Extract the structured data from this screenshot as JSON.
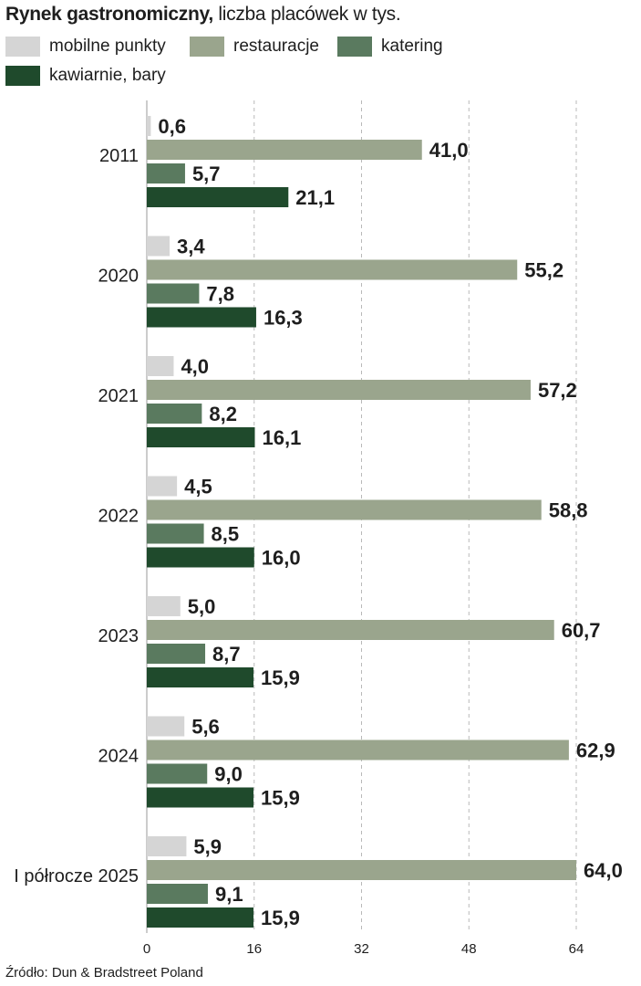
{
  "title_bold": "Rynek gastronomiczny,",
  "title_rest": " liczba placówek w tys.",
  "source": "Źródło: Dun & Bradstreet Poland",
  "colors": {
    "mobilne": "#d5d5d5",
    "restauracje": "#9aa58d",
    "katering": "#5a7a5f",
    "kawiarnie": "#1f4a2c",
    "grid": "#b9b9b9",
    "text": "#1e1e1e"
  },
  "legend": [
    {
      "label": "mobilne punkty",
      "color": "#d5d5d5"
    },
    {
      "label": "restauracje",
      "color": "#9aa58d"
    },
    {
      "label": "katering",
      "color": "#5a7a5f"
    },
    {
      "label": "kawiarnie, bary",
      "color": "#1f4a2c"
    }
  ],
  "chart_data": {
    "type": "bar",
    "orientation": "horizontal",
    "title": "Rynek gastronomiczny, liczba placówek w tys.",
    "categories": [
      "2011",
      "2020",
      "2021",
      "2022",
      "2023",
      "2024",
      "I półrocze 2025"
    ],
    "series": [
      {
        "name": "mobilne punkty",
        "values": [
          0.6,
          3.4,
          4.0,
          4.5,
          5.0,
          5.6,
          5.9
        ],
        "labels": [
          "0,6",
          "3,4",
          "4,0",
          "4,5",
          "5,0",
          "5,6",
          "5,9"
        ]
      },
      {
        "name": "restauracje",
        "values": [
          41.0,
          55.2,
          57.2,
          58.8,
          60.7,
          62.9,
          64.0
        ],
        "labels": [
          "41,0",
          "55,2",
          "57,2",
          "58,8",
          "60,7",
          "62,9",
          "64,0"
        ]
      },
      {
        "name": "katering",
        "values": [
          5.7,
          7.8,
          8.2,
          8.5,
          8.7,
          9.0,
          9.1
        ],
        "labels": [
          "5,7",
          "7,8",
          "8,2",
          "8,5",
          "8,7",
          "9,0",
          "9,1"
        ]
      },
      {
        "name": "kawiarnie, bary",
        "values": [
          21.1,
          16.3,
          16.1,
          16.0,
          15.9,
          15.9,
          15.9
        ],
        "labels": [
          "21,1",
          "16,3",
          "16,1",
          "16,0",
          "15,9",
          "15,9",
          "15,9"
        ]
      }
    ],
    "xlim": [
      0,
      64
    ],
    "xticks": [
      "0",
      "16",
      "32",
      "48",
      "64"
    ],
    "grid": true,
    "legend_position": "top"
  }
}
